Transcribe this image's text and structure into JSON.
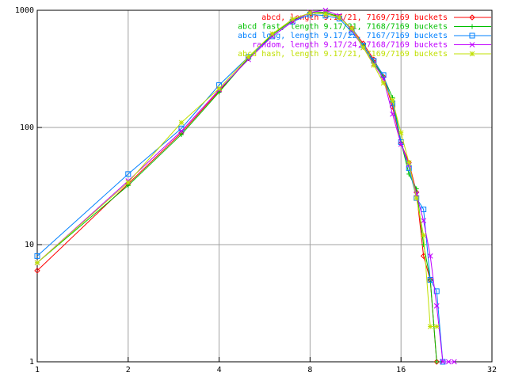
{
  "chart_data": {
    "type": "line",
    "xlog": true,
    "ylog": true,
    "grid": true,
    "legend": "top-right",
    "xlim": [
      1,
      32
    ],
    "ylim": [
      1,
      1000
    ],
    "xticks": [
      1,
      2,
      4,
      8,
      16,
      32
    ],
    "yticks": [
      1,
      10,
      100,
      1000
    ],
    "series": [
      {
        "name": "abcd, length 9.17/21, 7169/7169 buckets",
        "color": "#ff0000",
        "marker": "diamond",
        "x": [
          1,
          2,
          3,
          4,
          5,
          6,
          7,
          8,
          9,
          10,
          11,
          12,
          13,
          14,
          15,
          16,
          17,
          18,
          19,
          20,
          21
        ],
        "values": [
          6,
          33,
          90,
          205,
          390,
          620,
          820,
          950,
          960,
          870,
          700,
          520,
          380,
          270,
          150,
          73,
          50,
          28,
          8,
          5,
          1
        ]
      },
      {
        "name": "abcd fast, length 9.17/21, 7168/7169 buckets",
        "color": "#00c000",
        "marker": "plus",
        "x": [
          1,
          2,
          3,
          4,
          5,
          6,
          7,
          8,
          9,
          10,
          11,
          12,
          13,
          14,
          15,
          16,
          17,
          18,
          19,
          20,
          21
        ],
        "values": [
          7,
          32,
          87,
          200,
          390,
          620,
          820,
          950,
          960,
          880,
          680,
          500,
          360,
          270,
          180,
          75,
          40,
          30,
          10,
          5,
          1
        ]
      },
      {
        "name": "abcd long, length 9.17/22, 7167/7169 buckets",
        "color": "#0080ff",
        "marker": "square",
        "x": [
          1,
          2,
          3,
          4,
          5,
          6,
          7,
          8,
          9,
          10,
          11,
          12,
          13,
          14,
          15,
          16,
          17,
          18,
          19,
          20,
          21,
          22
        ],
        "values": [
          8,
          40,
          98,
          230,
          400,
          600,
          800,
          920,
          900,
          850,
          650,
          500,
          370,
          280,
          160,
          75,
          45,
          25,
          20,
          5,
          4,
          1
        ]
      },
      {
        "name": "random, length 9.17/24, 7168/7169 buckets",
        "color": "#c000ff",
        "marker": "cross",
        "x": [
          1,
          2,
          3,
          4,
          5,
          6,
          7,
          8,
          9,
          10,
          11,
          12,
          13,
          14,
          15,
          16,
          17,
          18,
          19,
          20,
          21,
          22,
          23,
          24
        ],
        "values": [
          7,
          35,
          93,
          210,
          380,
          600,
          800,
          960,
          1000,
          900,
          680,
          480,
          350,
          260,
          130,
          72,
          48,
          27,
          16,
          8,
          3,
          1,
          1,
          1
        ]
      },
      {
        "name": "abcd hash, length 9.17/21, 7169/7169 buckets",
        "color": "#c0e000",
        "marker": "star",
        "x": [
          1,
          2,
          3,
          4,
          5,
          6,
          7,
          8,
          9,
          10,
          11,
          12,
          13,
          14,
          15,
          16,
          17,
          18,
          19,
          20,
          21
        ],
        "values": [
          7,
          34,
          110,
          215,
          400,
          630,
          840,
          950,
          930,
          870,
          700,
          480,
          340,
          240,
          170,
          90,
          50,
          25,
          12,
          2,
          2
        ]
      }
    ]
  }
}
